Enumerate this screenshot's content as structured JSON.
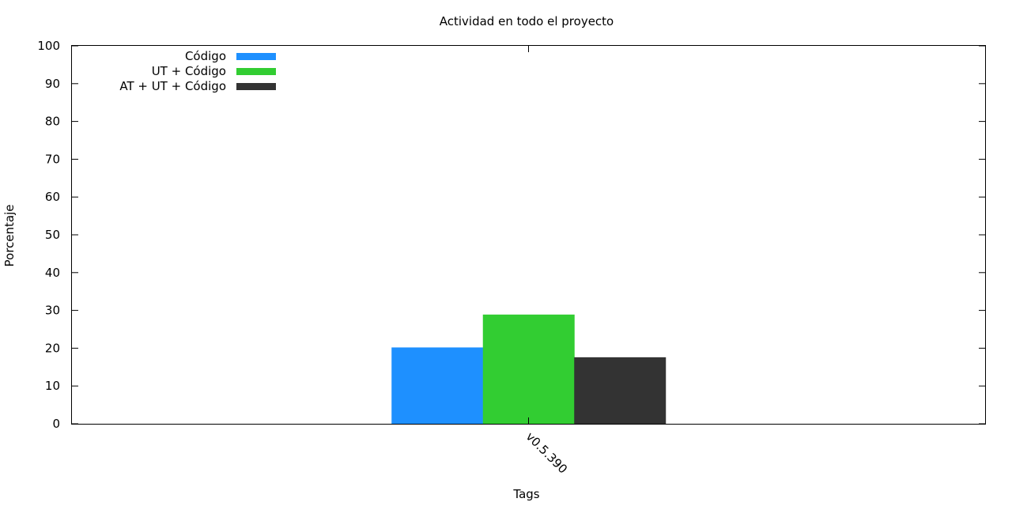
{
  "chart_data": {
    "type": "bar",
    "title": "Actividad en todo el proyecto",
    "xlabel": "Tags",
    "ylabel": "Porcentaje",
    "ylim": [
      0,
      100
    ],
    "yticks": [
      0,
      10,
      20,
      30,
      40,
      50,
      60,
      70,
      80,
      90,
      100
    ],
    "categories": [
      "v0.5.390"
    ],
    "series": [
      {
        "name": "Código",
        "color": "#1e90ff",
        "values": [
          20.2
        ]
      },
      {
        "name": "UT + Código",
        "color": "#32cd32",
        "values": [
          28.9
        ]
      },
      {
        "name": "AT + UT + Código",
        "color": "#333333",
        "values": [
          17.6
        ]
      }
    ],
    "grid": false,
    "legend_position": "top-left"
  }
}
